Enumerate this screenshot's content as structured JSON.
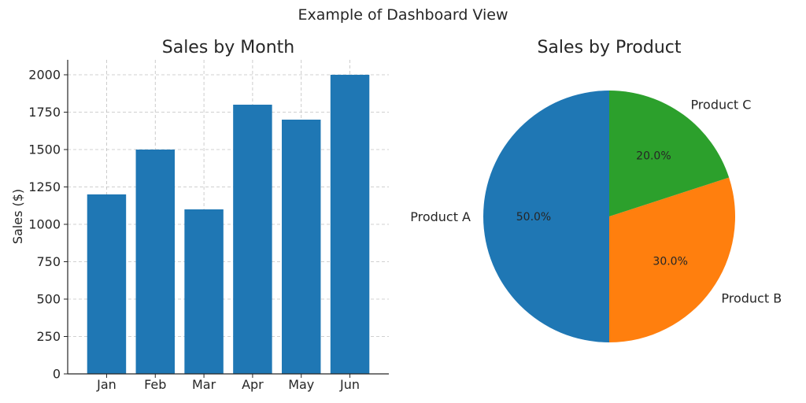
{
  "figure": {
    "suptitle": "Example of Dashboard View"
  },
  "chart_data": [
    {
      "type": "bar",
      "title": "Sales by Month",
      "xlabel": "",
      "ylabel": "Sales ($)",
      "categories": [
        "Jan",
        "Feb",
        "Mar",
        "Apr",
        "May",
        "Jun"
      ],
      "values": [
        1200,
        1500,
        1100,
        1800,
        1700,
        2000
      ],
      "ylim": [
        0,
        2100
      ],
      "yticks": [
        0,
        250,
        500,
        750,
        1000,
        1250,
        1500,
        1750,
        2000
      ],
      "grid": true,
      "color": "#1f77b4"
    },
    {
      "type": "pie",
      "title": "Sales by Product",
      "labels": [
        "Product A",
        "Product B",
        "Product C"
      ],
      "values": [
        50,
        30,
        20
      ],
      "pct_labels": [
        "50.0%",
        "30.0%",
        "20.0%"
      ],
      "colors": [
        "#1f77b4",
        "#ff7f0e",
        "#2ca02c"
      ],
      "start": "top, counterclockwise"
    }
  ]
}
